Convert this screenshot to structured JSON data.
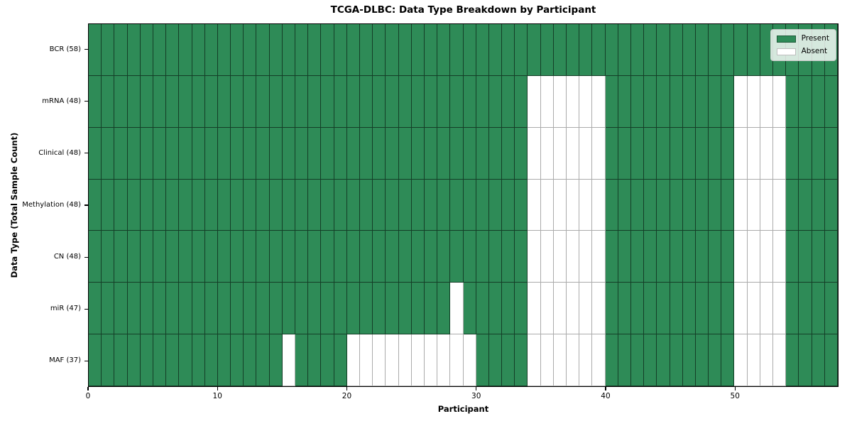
{
  "chart_data": {
    "type": "heatmap",
    "title": "TCGA-DLBC: Data Type Breakdown by Participant",
    "xlabel": "Participant",
    "ylabel": "Data Type (Total Sample Count)",
    "n_participants": 58,
    "x_range": [
      0,
      58
    ],
    "x_ticks": [
      {
        "value": 0,
        "label": "0"
      },
      {
        "value": 10,
        "label": "10"
      },
      {
        "value": 20,
        "label": "20"
      },
      {
        "value": 30,
        "label": "30"
      },
      {
        "value": 40,
        "label": "40"
      },
      {
        "value": 50,
        "label": "50"
      }
    ],
    "colors": {
      "present": "#2E8B57",
      "absent": "#FFFFFF"
    },
    "legend": {
      "position": "upper right",
      "items": [
        {
          "label": "Present",
          "state": "present"
        },
        {
          "label": "Absent",
          "state": "absent"
        }
      ]
    },
    "rows": [
      {
        "label": "BCR (58)",
        "data_type": "BCR",
        "present_total": 58,
        "absent_participants": []
      },
      {
        "label": "mRNA (48)",
        "data_type": "mRNA",
        "present_total": 48,
        "absent_participants": [
          34,
          35,
          36,
          37,
          38,
          39,
          50,
          51,
          52,
          53
        ]
      },
      {
        "label": "Clinical (48)",
        "data_type": "Clinical",
        "present_total": 48,
        "absent_participants": [
          34,
          35,
          36,
          37,
          38,
          39,
          50,
          51,
          52,
          53
        ]
      },
      {
        "label": "Methylation (48)",
        "data_type": "Methylation",
        "present_total": 48,
        "absent_participants": [
          34,
          35,
          36,
          37,
          38,
          39,
          50,
          51,
          52,
          53
        ]
      },
      {
        "label": "CN (48)",
        "data_type": "CN",
        "present_total": 48,
        "absent_participants": [
          34,
          35,
          36,
          37,
          38,
          39,
          50,
          51,
          52,
          53
        ]
      },
      {
        "label": "miR (47)",
        "data_type": "miR",
        "present_total": 47,
        "absent_participants": [
          28,
          34,
          35,
          36,
          37,
          38,
          39,
          50,
          51,
          52,
          53
        ]
      },
      {
        "label": "MAF (37)",
        "data_type": "MAF",
        "present_total": 37,
        "absent_participants": [
          15,
          20,
          21,
          22,
          23,
          24,
          25,
          26,
          27,
          28,
          29,
          34,
          35,
          36,
          37,
          38,
          39,
          50,
          51,
          52,
          53
        ]
      }
    ]
  }
}
